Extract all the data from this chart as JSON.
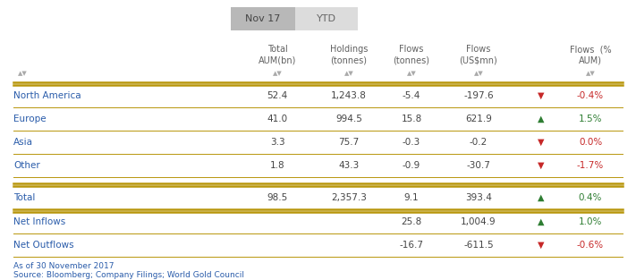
{
  "tab_nov17": "Nov 17",
  "tab_ytd": "YTD",
  "col_headers": [
    [
      "Total",
      "AUM(bn)"
    ],
    [
      "Holdings",
      "(tonnes)"
    ],
    [
      "Flows",
      "(tonnes)"
    ],
    [
      "Flows",
      "(US$mn)"
    ],
    [
      "Flows  (%",
      "AUM)"
    ]
  ],
  "rows": [
    {
      "label": "North America",
      "aum": "52.4",
      "holdings": "1,243.8",
      "flows_t": "-5.4",
      "flows_mn": "-197.6",
      "arrow": "down",
      "pct": "-0.4%"
    },
    {
      "label": "Europe",
      "aum": "41.0",
      "holdings": "994.5",
      "flows_t": "15.8",
      "flows_mn": "621.9",
      "arrow": "up",
      "pct": "1.5%"
    },
    {
      "label": "Asia",
      "aum": "3.3",
      "holdings": "75.7",
      "flows_t": "-0.3",
      "flows_mn": "-0.2",
      "arrow": "down",
      "pct": "0.0%"
    },
    {
      "label": "Other",
      "aum": "1.8",
      "holdings": "43.3",
      "flows_t": "-0.9",
      "flows_mn": "-30.7",
      "arrow": "down",
      "pct": "-1.7%"
    }
  ],
  "total_row": {
    "label": "Total",
    "aum": "98.5",
    "holdings": "2,357.3",
    "flows_t": "9.1",
    "flows_mn": "393.4",
    "arrow": "up",
    "pct": "0.4%"
  },
  "inflows_row": {
    "label": "Net Inflows",
    "flows_t": "25.8",
    "flows_mn": "1,004.9",
    "arrow": "up",
    "pct": "1.0%"
  },
  "outflows_row": {
    "label": "Net Outflows",
    "flows_t": "-16.7",
    "flows_mn": "-611.5",
    "arrow": "down",
    "pct": "-0.6%"
  },
  "footnote1": "As of 30 November 2017",
  "footnote2": "Source: Bloomberg; Company Filings; World Gold Council",
  "color_up": "#2e7d32",
  "color_down": "#c62828",
  "color_zero": "#c62828",
  "color_label": "#2a5caa",
  "color_header_text": "#606060",
  "color_tab_active_bg": "#b8b8b8",
  "color_tab_active_text": "#444444",
  "color_tab_inactive_bg": "#dcdcdc",
  "color_tab_inactive_text": "#666666",
  "color_line": "#b8960c",
  "color_sortarrow": "#aaaaaa",
  "bg_color": "#ffffff",
  "color_footnote": "#2a5caa",
  "color_data": "#444444"
}
